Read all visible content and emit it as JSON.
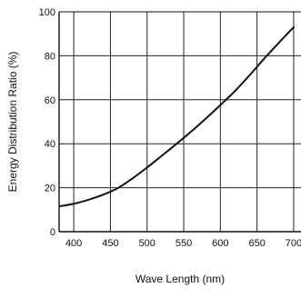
{
  "chart_data": {
    "type": "line",
    "xlabel": "Wave Length (nm)",
    "ylabel": "Energy Distribution Ratio (%)",
    "xlim": [
      380,
      710
    ],
    "ylim": [
      0,
      100
    ],
    "x_ticks": [
      400,
      450,
      500,
      550,
      600,
      650,
      700
    ],
    "x_tick_labels": [
      "400",
      "450",
      "500",
      "550",
      "600",
      "650",
      "700"
    ],
    "y_ticks": [
      0,
      20,
      40,
      60,
      80,
      100
    ],
    "y_tick_labels": [
      "0",
      "20",
      "40",
      "60",
      "80",
      "100"
    ],
    "grid": true,
    "line_color": "#111111",
    "series": [
      {
        "x": [
          380,
          400,
          420,
          440,
          460,
          480,
          500,
          520,
          540,
          560,
          580,
          600,
          620,
          640,
          660,
          680,
          700
        ],
        "values": [
          11.5,
          12.7,
          14.5,
          16.8,
          19.8,
          24.2,
          29.2,
          34.5,
          39.9,
          45.5,
          51.4,
          57.6,
          64.0,
          71.2,
          78.8,
          86.0,
          93.0
        ]
      }
    ]
  }
}
